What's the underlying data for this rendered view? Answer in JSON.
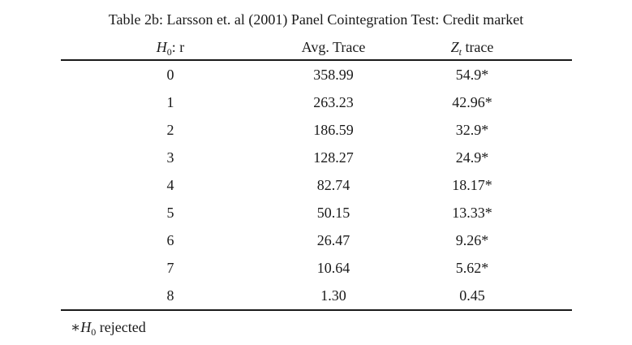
{
  "title": "Table 2b: Larsson et. al (2001) Panel Cointegration Test: Credit market",
  "table": {
    "headers": {
      "col1": {
        "base": "H",
        "sub": "0",
        "rest": ": r"
      },
      "col2": "Avg. Trace",
      "col3": {
        "base": "Z",
        "sub": "t",
        "rest": " trace"
      }
    },
    "rows": [
      {
        "r": "0",
        "avg_trace": "358.99",
        "zt_trace": "54.9*"
      },
      {
        "r": "1",
        "avg_trace": "263.23",
        "zt_trace": "42.96*"
      },
      {
        "r": "2",
        "avg_trace": "186.59",
        "zt_trace": "32.9*"
      },
      {
        "r": "3",
        "avg_trace": "128.27",
        "zt_trace": "24.9*"
      },
      {
        "r": "4",
        "avg_trace": "82.74",
        "zt_trace": "18.17*"
      },
      {
        "r": "5",
        "avg_trace": "50.15",
        "zt_trace": "13.33*"
      },
      {
        "r": "6",
        "avg_trace": "26.47",
        "zt_trace": "9.26*"
      },
      {
        "r": "7",
        "avg_trace": "10.64",
        "zt_trace": "5.62*"
      },
      {
        "r": "8",
        "avg_trace": "1.30",
        "zt_trace": "0.45"
      }
    ]
  },
  "footnote": {
    "star": "∗",
    "base": "H",
    "sub": "0",
    "rest": " rejected"
  },
  "colors": {
    "text": "#1a1a1a",
    "background": "#ffffff",
    "rule": "#1a1a1a"
  }
}
